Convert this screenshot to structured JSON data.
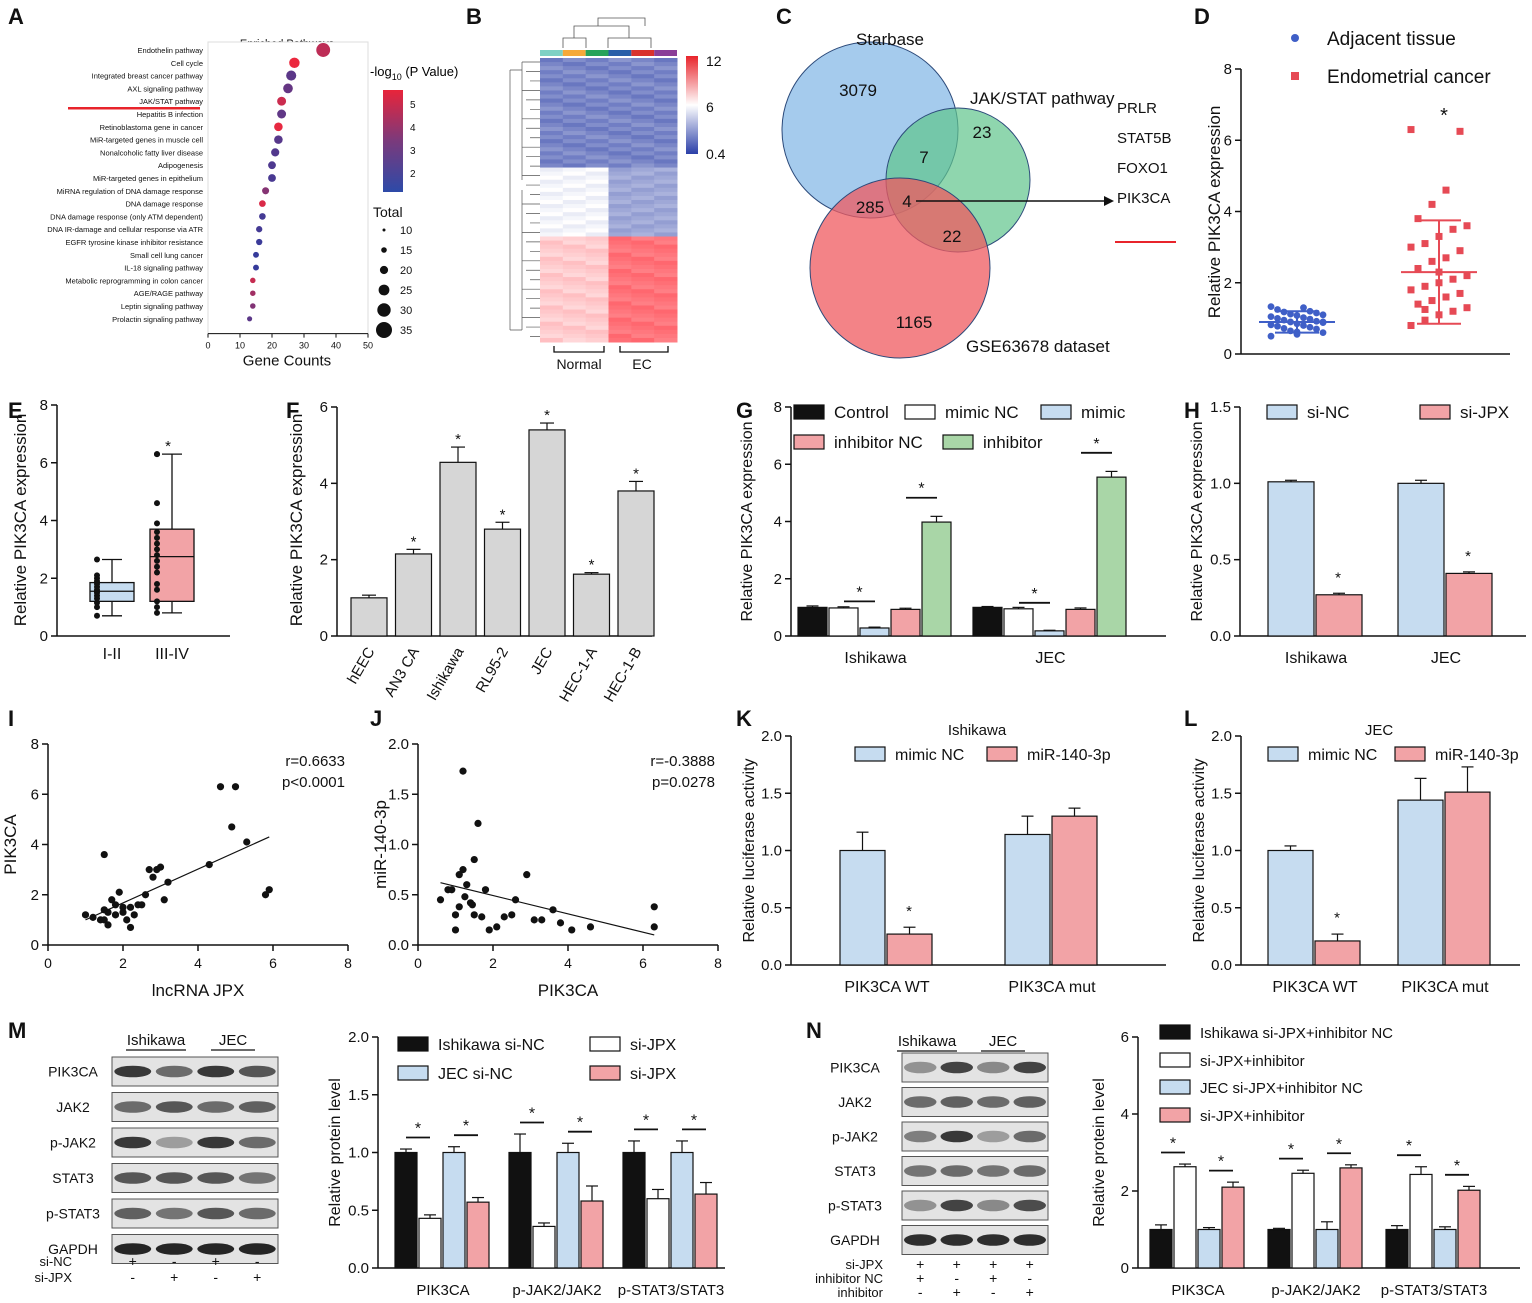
{
  "panel_labels": [
    "A",
    "B",
    "C",
    "D",
    "E",
    "F",
    "G",
    "H",
    "I",
    "J",
    "K",
    "L",
    "M",
    "N"
  ],
  "colors": {
    "blue": "#c6dcf0",
    "pink": "#f2a3a6",
    "green": "#a9d6a7",
    "gray": "#d6d6d6",
    "black": "#111111",
    "red": "#e8242b",
    "venn_blue": "#7fb5e6",
    "venn_green": "#5fc48b",
    "venn_red": "#ef5a5f",
    "dot_blue": "#3f5fc7",
    "dot_red": "#e64a55"
  },
  "chart_data": [
    {
      "id": "A",
      "type": "scatter",
      "title": "Enriched Pathways",
      "xlabel": "Gene Counts",
      "xlim": [
        0,
        50
      ],
      "xticks": [
        "0",
        "10",
        "20",
        "30",
        "40",
        "50"
      ],
      "pathways": [
        "Endothelin pathway",
        "Cell cycle",
        "Integrated breast cancer pathway",
        "AXL signaling pathway",
        "JAK/STAT pathway",
        "Hepatitis B infection",
        "Retinoblastoma gene in cancer",
        "MiR-targeted genes in muscle cell",
        "Nonalcoholic fatty liver disease",
        "Adipogenesis",
        "MiR-targeted genes in epithelium",
        "MiRNA regulation of DNA damage response",
        "DNA damage response",
        "DNA damage response (only ATM dependent)",
        "DNA IR-damage and cellular response via ATR",
        "EGFR tyrosine kinase inhibitor resistance",
        "Small cell lung cancer",
        "IL-18 signaling pathway",
        "Metabolic reprogramming in colon cancer",
        "AGE/RAGE pathway",
        "Leptin signaling pathway",
        "Prolactin signaling pathway"
      ],
      "counts": [
        36,
        27,
        26,
        25,
        23,
        23,
        22,
        22,
        21,
        20,
        20,
        18,
        17,
        17,
        16,
        16,
        15,
        15,
        14,
        14,
        14,
        13
      ],
      "neglog10p": [
        4.6,
        5.6,
        2.5,
        2.7,
        4.9,
        2.6,
        5.5,
        2.4,
        2.3,
        2.2,
        2.1,
        3.4,
        5.2,
        2.0,
        2.0,
        1.8,
        1.7,
        1.7,
        4.8,
        4.0,
        3.3,
        2.5
      ],
      "highlight": "JAK/STAT pathway",
      "colorbar_label": "-log",
      "colorbar_sub": "10",
      "colorbar_tail": " (P Value)",
      "colorbar_ticks": [
        "5",
        "4",
        "3",
        "2"
      ],
      "size_title": "Total",
      "size_ticks": [
        "10",
        "15",
        "20",
        "25",
        "30",
        "35"
      ]
    },
    {
      "id": "B",
      "type": "heatmap",
      "colorbar_ticks": [
        "12",
        "6",
        "0.4"
      ],
      "group_labels": [
        "Normal",
        "EC"
      ]
    },
    {
      "id": "C",
      "type": "venn",
      "sets": [
        "Starbase",
        "JAK/STAT pathway",
        "GSE63678 dataset"
      ],
      "regions": {
        "starbase_only": "3079",
        "jak_only": "23",
        "gse_only": "1165",
        "starbase_jak": "7",
        "starbase_gse": "285",
        "jak_gse": "22",
        "all": "4"
      },
      "genes": [
        "PRLR",
        "STAT5B",
        "FOXO1",
        "PIK3CA"
      ]
    },
    {
      "id": "D",
      "type": "scatter",
      "ylabel": "Relative PIK3CA expression",
      "ylim": [
        0,
        8
      ],
      "yticks": [
        "0",
        "2",
        "4",
        "6",
        "8"
      ],
      "series": [
        {
          "name": "Adjacent tissue",
          "mean": 0.9,
          "sd": 0.3
        },
        {
          "name": "Endometrial cancer",
          "mean": 2.3,
          "sd": 1.45
        }
      ],
      "adjacent_values": [
        0.5,
        0.55,
        0.6,
        0.65,
        0.7,
        0.72,
        0.75,
        0.78,
        0.8,
        0.82,
        0.85,
        0.88,
        0.9,
        0.92,
        0.95,
        0.98,
        1.0,
        1.02,
        1.05,
        1.08,
        1.1,
        1.12,
        1.15,
        1.18,
        1.2,
        1.25,
        1.3,
        1.33,
        0.62,
        0.9
      ],
      "cancer_values": [
        0.8,
        0.95,
        1.1,
        1.2,
        1.3,
        1.4,
        1.5,
        1.6,
        1.7,
        1.8,
        1.9,
        2.0,
        2.1,
        2.2,
        2.4,
        2.6,
        2.7,
        2.9,
        3.0,
        3.1,
        3.3,
        3.5,
        3.6,
        3.8,
        4.2,
        4.6,
        6.25,
        6.3,
        1.25,
        2.3
      ],
      "sig": "*"
    },
    {
      "id": "E",
      "type": "box",
      "ylabel": "Relative PIK3CA expression",
      "ylim": [
        0,
        8
      ],
      "yticks": [
        "0",
        "2",
        "4",
        "6",
        "8"
      ],
      "categories": [
        "I-II",
        "III-IV"
      ],
      "boxes": [
        {
          "min": 0.7,
          "q1": 1.2,
          "median": 1.55,
          "q3": 1.85,
          "max": 2.65,
          "color": "blue"
        },
        {
          "min": 0.8,
          "q1": 1.2,
          "median": 2.75,
          "q3": 3.7,
          "max": 6.3,
          "color": "pink"
        }
      ],
      "points": [
        [
          0.7,
          1.0,
          1.15,
          1.3,
          1.4,
          1.5,
          1.55,
          1.6,
          1.7,
          1.8,
          1.9,
          2.0,
          2.1,
          2.65
        ],
        [
          0.8,
          1.0,
          1.2,
          1.6,
          1.8,
          2.2,
          2.4,
          2.6,
          2.8,
          3.0,
          3.2,
          3.4,
          3.6,
          3.9,
          4.6,
          6.3,
          6.3
        ]
      ],
      "sig": "*"
    },
    {
      "id": "F",
      "type": "bar",
      "ylabel": "Relative PIK3CA expression",
      "ylim": [
        0,
        6
      ],
      "yticks": [
        "0",
        "2",
        "4",
        "6"
      ],
      "categories": [
        "hEEC",
        "AN3 CA",
        "Ishikawa",
        "RL95-2",
        "JEC",
        "HEC-1-A",
        "HEC-1-B"
      ],
      "values": [
        1.0,
        2.15,
        4.55,
        2.8,
        5.4,
        1.62,
        3.8
      ],
      "errors": [
        0.07,
        0.12,
        0.4,
        0.18,
        0.18,
        0.04,
        0.25
      ],
      "sig": [
        "",
        "*",
        "*",
        "*",
        "*",
        "*",
        "*"
      ]
    },
    {
      "id": "G",
      "type": "bar",
      "ylabel": "Relative PIK3CA expression",
      "ylim": [
        0,
        8
      ],
      "yticks": [
        "0",
        "2",
        "4",
        "6",
        "8"
      ],
      "categories": [
        "Ishikawa",
        "JEC"
      ],
      "series": [
        {
          "name": "Control",
          "values": [
            1.0,
            1.0
          ],
          "errors": [
            0.05,
            0.03
          ],
          "color": "black"
        },
        {
          "name": "mimic NC",
          "values": [
            0.98,
            0.95
          ],
          "errors": [
            0.04,
            0.05
          ],
          "color": "white"
        },
        {
          "name": "mimic",
          "values": [
            0.28,
            0.18
          ],
          "errors": [
            0.03,
            0.02
          ],
          "color": "blue"
        },
        {
          "name": "inhibitor NC",
          "values": [
            0.93,
            0.93
          ],
          "errors": [
            0.04,
            0.05
          ],
          "color": "pink"
        },
        {
          "name": "inhibitor",
          "values": [
            3.98,
            5.55
          ],
          "errors": [
            0.2,
            0.2
          ],
          "color": "green"
        }
      ],
      "sig": "*"
    },
    {
      "id": "H",
      "type": "bar",
      "ylabel": "Relative PIK3CA expression",
      "ylim": [
        0,
        1.5
      ],
      "yticks": [
        "0.0",
        "0.5",
        "1.0",
        "1.5"
      ],
      "categories": [
        "Ishikawa",
        "JEC"
      ],
      "series": [
        {
          "name": "si-NC",
          "values": [
            1.01,
            1.0
          ],
          "errors": [
            0.01,
            0.02
          ],
          "color": "blue"
        },
        {
          "name": "si-JPX",
          "values": [
            0.27,
            0.41
          ],
          "errors": [
            0.01,
            0.01
          ],
          "color": "pink"
        }
      ],
      "sig": "*"
    },
    {
      "id": "I",
      "type": "scatter",
      "xlabel": "lncRNA JPX",
      "ylabel": "PIK3CA",
      "xlim": [
        0,
        8
      ],
      "ylim": [
        0,
        8
      ],
      "xticks": [
        "0",
        "2",
        "4",
        "6",
        "8"
      ],
      "yticks": [
        "0",
        "2",
        "4",
        "6",
        "8"
      ],
      "stat1": "r=0.6633",
      "stat2": "p<0.0001",
      "x": [
        1.0,
        1.2,
        1.4,
        1.5,
        1.6,
        1.5,
        1.7,
        1.8,
        1.9,
        2.0,
        2.1,
        2.2,
        2.3,
        2.4,
        1.6,
        1.8,
        2.0,
        2.5,
        2.7,
        2.8,
        3.0,
        3.1,
        2.6,
        2.9,
        3.2,
        4.3,
        4.6,
        4.9,
        5.0,
        5.3,
        5.8,
        5.9,
        1.5,
        2.2
      ],
      "y": [
        1.2,
        1.1,
        1.0,
        1.4,
        1.3,
        3.6,
        1.8,
        1.6,
        2.1,
        1.5,
        1.0,
        0.7,
        1.2,
        1.6,
        0.8,
        1.2,
        1.3,
        1.6,
        3.0,
        2.7,
        3.1,
        1.8,
        2.0,
        3.0,
        2.5,
        3.2,
        6.3,
        4.7,
        6.3,
        4.1,
        2.0,
        2.2,
        1.0,
        1.5
      ],
      "fit": [
        [
          1.0,
          1.0
        ],
        [
          5.9,
          4.3
        ]
      ]
    },
    {
      "id": "J",
      "type": "scatter",
      "xlabel": "PIK3CA",
      "ylabel": "miR-140-3p",
      "xlim": [
        0,
        8
      ],
      "ylim": [
        0,
        2.0
      ],
      "xticks": [
        "0",
        "2",
        "4",
        "6",
        "8"
      ],
      "yticks": [
        "0.0",
        "0.5",
        "1.0",
        "1.5",
        "2.0"
      ],
      "stat1": "r=-0.3888",
      "stat2": "p=0.0278",
      "x": [
        0.6,
        0.8,
        1.0,
        1.1,
        1.2,
        1.3,
        1.4,
        1.5,
        1.0,
        1.2,
        1.6,
        1.8,
        0.9,
        1.1,
        1.5,
        1.9,
        2.1,
        2.3,
        2.5,
        2.6,
        2.9,
        3.1,
        3.3,
        3.6,
        3.8,
        4.1,
        4.6,
        6.3,
        6.3,
        1.7,
        1.25,
        1.45
      ],
      "y": [
        0.45,
        0.55,
        0.15,
        0.38,
        0.75,
        0.6,
        0.42,
        0.3,
        0.3,
        1.73,
        1.21,
        0.55,
        0.55,
        0.7,
        0.85,
        0.15,
        0.18,
        0.28,
        0.3,
        0.45,
        0.7,
        0.25,
        0.25,
        0.35,
        0.22,
        0.15,
        0.18,
        0.38,
        0.18,
        0.28,
        0.48,
        0.4
      ],
      "fit": [
        [
          0.6,
          0.62
        ],
        [
          6.3,
          0.1
        ]
      ]
    },
    {
      "id": "K",
      "type": "bar",
      "title": "Ishikawa",
      "ylabel": "Relative luciferase activity",
      "ylim": [
        0,
        2.0
      ],
      "yticks": [
        "0.0",
        "0.5",
        "1.0",
        "1.5",
        "2.0"
      ],
      "categories": [
        "PIK3CA WT",
        "PIK3CA mut"
      ],
      "series": [
        {
          "name": "mimic NC",
          "values": [
            1.0,
            1.14
          ],
          "errors": [
            0.16,
            0.16
          ],
          "color": "blue"
        },
        {
          "name": "miR-140-3p",
          "values": [
            0.27,
            1.3
          ],
          "errors": [
            0.06,
            0.07
          ],
          "color": "pink"
        }
      ],
      "sig": "*"
    },
    {
      "id": "L",
      "type": "bar",
      "title": "JEC",
      "ylabel": "Relative luciferase activity",
      "ylim": [
        0,
        2.0
      ],
      "yticks": [
        "0.0",
        "0.5",
        "1.0",
        "1.5",
        "2.0"
      ],
      "categories": [
        "PIK3CA WT",
        "PIK3CA mut"
      ],
      "series": [
        {
          "name": "mimic NC",
          "values": [
            1.0,
            1.44
          ],
          "errors": [
            0.04,
            0.19
          ],
          "color": "blue"
        },
        {
          "name": "miR-140-3p",
          "values": [
            0.21,
            1.51
          ],
          "errors": [
            0.06,
            0.22
          ],
          "color": "pink"
        }
      ],
      "sig": "*"
    },
    {
      "id": "M",
      "type": "bar",
      "ylabel": "Relative protein level",
      "ylim": [
        0,
        2.0
      ],
      "yticks": [
        "0.0",
        "0.5",
        "1.0",
        "1.5",
        "2.0"
      ],
      "categories": [
        "PIK3CA",
        "p-JAK2/JAK2",
        "p-STAT3/STAT3"
      ],
      "series": [
        {
          "name": "Ishikawa si-NC",
          "values": [
            1.0,
            1.0,
            1.0
          ],
          "errors": [
            0.03,
            0.16,
            0.1
          ],
          "color": "black"
        },
        {
          "name": "si-JPX",
          "values": [
            0.43,
            0.36,
            0.6
          ],
          "errors": [
            0.03,
            0.03,
            0.08
          ],
          "color": "white"
        },
        {
          "name": "JEC si-NC",
          "values": [
            1.0,
            1.0,
            1.0
          ],
          "errors": [
            0.05,
            0.08,
            0.1
          ],
          "color": "blue"
        },
        {
          "name": "si-JPX",
          "values": [
            0.57,
            0.58,
            0.64
          ],
          "errors": [
            0.04,
            0.13,
            0.1
          ],
          "color": "pink"
        }
      ],
      "sig": "*"
    },
    {
      "id": "N",
      "type": "bar",
      "ylabel": "Relative protein level",
      "ylim": [
        0,
        6
      ],
      "yticks": [
        "0",
        "2",
        "4",
        "6"
      ],
      "categories": [
        "PIK3CA",
        "p-JAK2/JAK2",
        "p-STAT3/STAT3"
      ],
      "series": [
        {
          "name": "Ishikawa si-JPX+inhibitor NC",
          "values": [
            1.0,
            1.0,
            1.0
          ],
          "errors": [
            0.12,
            0.03,
            0.1
          ],
          "color": "black"
        },
        {
          "name": "si-JPX+inhibitor",
          "values": [
            2.63,
            2.46,
            2.43
          ],
          "errors": [
            0.07,
            0.08,
            0.2
          ],
          "color": "white"
        },
        {
          "name": "JEC si-JPX+inhibitor NC",
          "values": [
            1.0,
            1.0,
            1.0
          ],
          "errors": [
            0.05,
            0.2,
            0.07
          ],
          "color": "blue"
        },
        {
          "name": "si-JPX+inhibitor",
          "values": [
            2.1,
            2.6,
            2.02
          ],
          "errors": [
            0.13,
            0.08,
            0.1
          ],
          "color": "pink"
        }
      ],
      "sig": "*"
    }
  ],
  "blots": {
    "M": {
      "groups": [
        "Ishikawa",
        "JEC"
      ],
      "rows": [
        "PIK3CA",
        "JAK2",
        "p-JAK2",
        "STAT3",
        "p-STAT3",
        "GAPDH"
      ],
      "cond_labels": [
        "si-NC",
        "si-JPX"
      ],
      "cond_values": [
        [
          "+",
          "-",
          "+",
          "-"
        ],
        [
          "-",
          "+",
          "-",
          "+"
        ]
      ],
      "intensity": [
        [
          0.85,
          0.6,
          0.85,
          0.7
        ],
        [
          0.6,
          0.7,
          0.6,
          0.65
        ],
        [
          0.85,
          0.35,
          0.85,
          0.6
        ],
        [
          0.7,
          0.7,
          0.7,
          0.55
        ],
        [
          0.65,
          0.55,
          0.7,
          0.6
        ],
        [
          0.95,
          0.95,
          0.95,
          0.95
        ]
      ]
    },
    "N": {
      "groups": [
        "Ishikawa",
        "JEC"
      ],
      "rows": [
        "PIK3CA",
        "JAK2",
        "p-JAK2",
        "STAT3",
        "p-STAT3",
        "GAPDH"
      ],
      "cond_labels": [
        "si-JPX",
        "inhibitor NC",
        "inhibitor"
      ],
      "cond_values": [
        [
          "+",
          "+",
          "+",
          "+"
        ],
        [
          "+",
          "-",
          "+",
          "-"
        ],
        [
          "-",
          "+",
          "-",
          "+"
        ]
      ],
      "intensity": [
        [
          0.4,
          0.8,
          0.45,
          0.8
        ],
        [
          0.6,
          0.65,
          0.6,
          0.65
        ],
        [
          0.5,
          0.85,
          0.35,
          0.6
        ],
        [
          0.55,
          0.6,
          0.55,
          0.6
        ],
        [
          0.4,
          0.8,
          0.45,
          0.75
        ],
        [
          0.9,
          0.9,
          0.9,
          0.9
        ]
      ]
    }
  }
}
